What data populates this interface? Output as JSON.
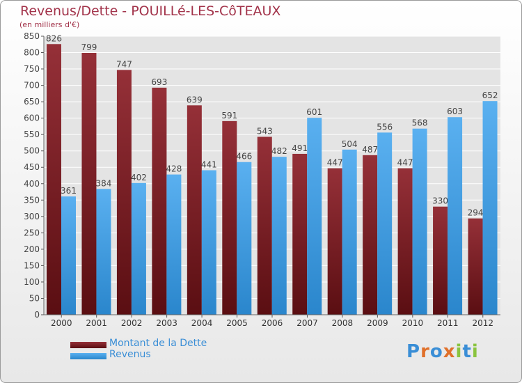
{
  "header": {
    "title": "Revenus/Dette - POUILLé-LES-CôTEAUX",
    "subtitle": "(en milliers d'€)"
  },
  "legend": {
    "debt_label": "Montant de la Dette",
    "revenue_label": "Revenus"
  },
  "logo": {
    "text": "Proxiti"
  },
  "colors": {
    "debt": "#7a1a1f",
    "revenue": "#3f9ee6",
    "title": "#a2334a",
    "legend_text": "#3a8ed6"
  },
  "chart_data": {
    "type": "bar",
    "title": "Revenus/Dette - POUILLé-LES-CôTEAUX",
    "subtitle": "(en milliers d'€)",
    "categories": [
      "2000",
      "2001",
      "2002",
      "2003",
      "2004",
      "2005",
      "2006",
      "2007",
      "2008",
      "2009",
      "2010",
      "2011",
      "2012"
    ],
    "series": [
      {
        "name": "Montant de la Dette",
        "values": [
          826,
          799,
          747,
          693,
          639,
          591,
          543,
          491,
          447,
          487,
          447,
          330,
          294
        ]
      },
      {
        "name": "Revenus",
        "values": [
          361,
          384,
          402,
          428,
          441,
          466,
          482,
          601,
          504,
          556,
          568,
          603,
          652
        ]
      }
    ],
    "ylim": [
      0,
      850
    ],
    "yticks": [
      0,
      50,
      100,
      150,
      200,
      250,
      300,
      350,
      400,
      450,
      500,
      550,
      600,
      650,
      700,
      750,
      800,
      850
    ],
    "grid": true,
    "legend_position": "bottom-left"
  }
}
